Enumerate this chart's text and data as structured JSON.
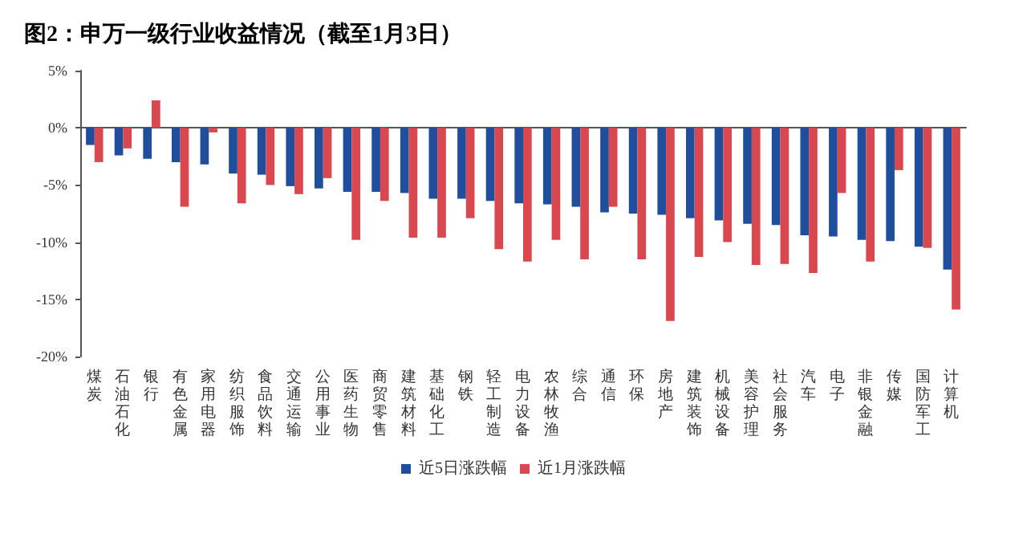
{
  "chart_data": {
    "type": "bar",
    "title": "图2：申万一级行业收益情况（截至1月3日）",
    "categories": [
      "煤炭",
      "石油石化",
      "银行",
      "有色金属",
      "家用电器",
      "纺织服饰",
      "食品饮料",
      "交通运输",
      "公用事业",
      "医药生物",
      "商贸零售",
      "建筑材料",
      "基础化工",
      "钢铁",
      "轻工制造",
      "电力设备",
      "农林牧渔",
      "综合",
      "通信",
      "环保",
      "房地产",
      "建筑装饰",
      "机械设备",
      "美容护理",
      "社会服务",
      "汽车",
      "电子",
      "非银金融",
      "传媒",
      "国防军工",
      "计算机"
    ],
    "series": [
      {
        "name": "近5日涨跌幅",
        "color": "#1f4e9c",
        "values": [
          -1.5,
          -2.4,
          -2.7,
          -3.0,
          -3.2,
          -4.0,
          -4.1,
          -5.1,
          -5.3,
          -5.6,
          -5.6,
          -5.7,
          -6.2,
          -6.2,
          -6.4,
          -6.6,
          -6.7,
          -6.9,
          -7.4,
          -7.5,
          -7.6,
          -7.9,
          -8.1,
          -8.4,
          -8.5,
          -9.4,
          -9.5,
          -9.8,
          -9.9,
          -10.4,
          -12.4
        ]
      },
      {
        "name": "近1月涨跌幅",
        "color": "#d9474f",
        "values": [
          -3.0,
          -1.8,
          2.4,
          -6.9,
          -0.4,
          -6.6,
          -5.0,
          -5.8,
          -4.4,
          -9.8,
          -6.4,
          -9.6,
          -9.6,
          -7.9,
          -10.6,
          -11.7,
          -9.8,
          -11.5,
          -6.9,
          -11.5,
          -16.9,
          -11.3,
          -10.0,
          -12.0,
          -11.9,
          -12.7,
          -5.7,
          -11.7,
          -3.7,
          -10.5,
          -15.9
        ]
      }
    ],
    "ylim": [
      -20,
      5
    ],
    "yticks": [
      {
        "value": -20,
        "label": "-20%"
      },
      {
        "value": -15,
        "label": "-15%"
      },
      {
        "value": -10,
        "label": "-10%"
      },
      {
        "value": -5,
        "label": "-5%"
      },
      {
        "value": 0,
        "label": "0%"
      },
      {
        "value": 5,
        "label": "5%"
      }
    ],
    "legend": "bottom"
  }
}
